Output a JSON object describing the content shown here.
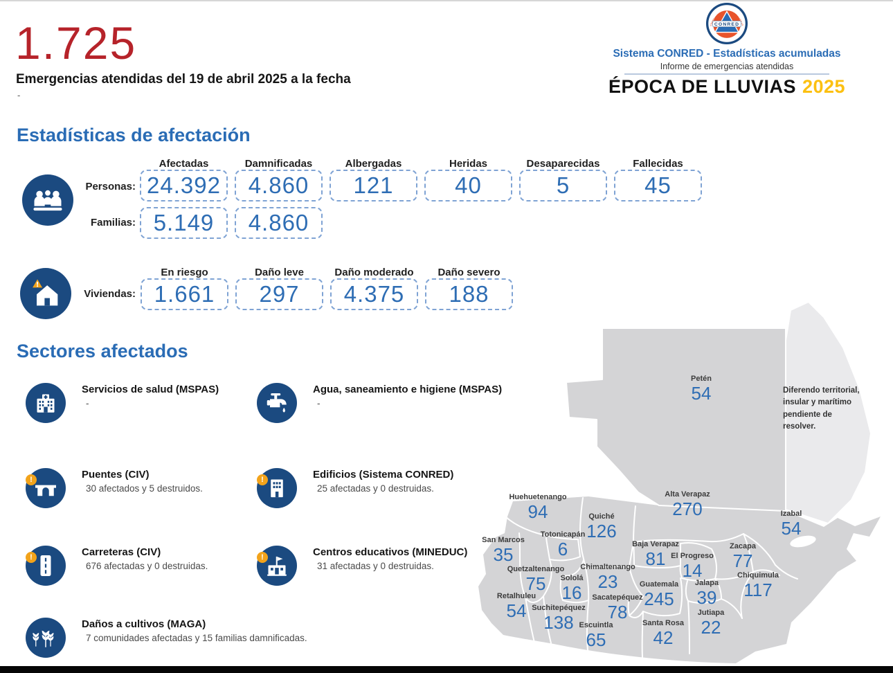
{
  "header": {
    "total": "1.725",
    "subtitle": "Emergencias atendidas del 19 de abril 2025 a la fecha",
    "note": "-",
    "logo": {
      "label": "CONRED",
      "ring_top": "COORDINADORA NACIONAL PARA LA REDUCCIÓN DE DESASTRES",
      "ring_bottom": "GUATEMALA, C.A."
    },
    "system_title": "Sistema CONRED - Estadísticas acumuladas",
    "report_subtitle": "Informe de emergencias atendidas",
    "season_title": "ÉPOCA DE LLUVIAS",
    "season_year": "2025"
  },
  "colors": {
    "accent_red": "#b6232a",
    "accent_blue": "#2a6cb5",
    "number_blue": "#2e6db4",
    "navy_icon": "#1b4a80",
    "warning_orange": "#f2a31b",
    "year_yellow": "#fcc011",
    "map_gray": "#d4d4d6",
    "belize_gray": "#eaeaec"
  },
  "sections": {
    "afectacion": {
      "title": "Estadísticas de afectación",
      "personas": {
        "label": "Personas:",
        "columns": [
          "Afectadas",
          "Damnificadas",
          "Albergadas",
          "Heridas",
          "Desaparecidas",
          "Fallecidas"
        ],
        "values": [
          "24.392",
          "4.860",
          "121",
          "40",
          "5",
          "45"
        ]
      },
      "familias": {
        "label": "Familias:",
        "values": [
          "5.149",
          "4.860"
        ]
      },
      "viviendas": {
        "label": "Viviendas:",
        "columns": [
          "En riesgo",
          "Daño leve",
          "Daño moderado",
          "Daño severo"
        ],
        "values": [
          "1.661",
          "297",
          "4.375",
          "188"
        ]
      }
    },
    "sectores": {
      "title": "Sectores afectados",
      "items": [
        {
          "icon": "hospital-icon",
          "title": "Servicios de salud (MSPAS)",
          "detail": "-"
        },
        {
          "icon": "faucet-icon",
          "title": "Agua, saneamiento e higiene (MSPAS)",
          "detail": "-"
        },
        {
          "icon": "bridge-icon",
          "title": "Puentes (CIV)",
          "detail": "30 afectados y 5 destruidos."
        },
        {
          "icon": "building-icon",
          "title": "Edificios (Sistema CONRED)",
          "detail": "25 afectadas y 0 destruidas."
        },
        {
          "icon": "road-icon",
          "title": "Carreteras (CIV)",
          "detail": "676 afectadas y 0 destruidas."
        },
        {
          "icon": "school-icon",
          "title": "Centros educativos (MINEDUC)",
          "detail": "31 afectadas y 0 destruidas."
        },
        {
          "icon": "crops-icon",
          "title": "Daños a cultivos (MAGA)",
          "detail": "7 comunidades afectadas y 15 familias damnificadas."
        }
      ]
    }
  },
  "map": {
    "note": "Diferendo territorial, insular y marítimo pendiente de resolver.",
    "departments": [
      {
        "name": "Petén",
        "value": "54"
      },
      {
        "name": "Huehuetenango",
        "value": "94"
      },
      {
        "name": "Quiché",
        "value": "126"
      },
      {
        "name": "Alta Verapaz",
        "value": "270"
      },
      {
        "name": "Izabal",
        "value": "54"
      },
      {
        "name": "San Marcos",
        "value": "35"
      },
      {
        "name": "Totonicapán",
        "value": "6"
      },
      {
        "name": "Baja Verapaz",
        "value": "81"
      },
      {
        "name": "El Progreso",
        "value": "14"
      },
      {
        "name": "Zacapa",
        "value": "77"
      },
      {
        "name": "Quetzaltenango",
        "value": "75"
      },
      {
        "name": "Sololá",
        "value": "16"
      },
      {
        "name": "Chimaltenango",
        "value": "23"
      },
      {
        "name": "Guatemala",
        "value": "245"
      },
      {
        "name": "Jalapa",
        "value": "39"
      },
      {
        "name": "Chiquimula",
        "value": "117"
      },
      {
        "name": "Retalhuleu",
        "value": "54"
      },
      {
        "name": "Suchitepéquez",
        "value": "138"
      },
      {
        "name": "Sacatepéquez",
        "value": "78"
      },
      {
        "name": "Jutiapa",
        "value": "22"
      },
      {
        "name": "Escuintla",
        "value": "65"
      },
      {
        "name": "Santa Rosa",
        "value": "42"
      }
    ]
  },
  "chart_data": [
    {
      "type": "table",
      "title": "Estadísticas de afectación — Personas y Familias",
      "columns": [
        "Afectadas",
        "Damnificadas",
        "Albergadas",
        "Heridas",
        "Desaparecidas",
        "Fallecidas"
      ],
      "rows": [
        {
          "label": "Personas",
          "values": [
            24392,
            4860,
            121,
            40,
            5,
            45
          ]
        },
        {
          "label": "Familias",
          "values": [
            5149,
            4860,
            null,
            null,
            null,
            null
          ]
        }
      ]
    },
    {
      "type": "table",
      "title": "Estadísticas de afectación — Viviendas",
      "columns": [
        "En riesgo",
        "Daño leve",
        "Daño moderado",
        "Daño severo"
      ],
      "rows": [
        {
          "label": "Viviendas",
          "values": [
            1661,
            297,
            4375,
            188
          ]
        }
      ]
    },
    {
      "type": "heatmap",
      "title": "Emergencias atendidas por departamento (ÉPOCA DE LLUVIAS 2025)",
      "categories": [
        "Petén",
        "Huehuetenango",
        "Quiché",
        "Alta Verapaz",
        "Izabal",
        "San Marcos",
        "Totonicapán",
        "Baja Verapaz",
        "El Progreso",
        "Zacapa",
        "Quetzaltenango",
        "Sololá",
        "Chimaltenango",
        "Guatemala",
        "Jalapa",
        "Chiquimula",
        "Retalhuleu",
        "Suchitepéquez",
        "Sacatepéquez",
        "Jutiapa",
        "Escuintla",
        "Santa Rosa"
      ],
      "values": [
        54,
        94,
        126,
        270,
        54,
        35,
        6,
        81,
        14,
        77,
        75,
        16,
        23,
        245,
        39,
        117,
        54,
        138,
        78,
        22,
        65,
        42
      ],
      "total_emergencies": 1725
    }
  ]
}
